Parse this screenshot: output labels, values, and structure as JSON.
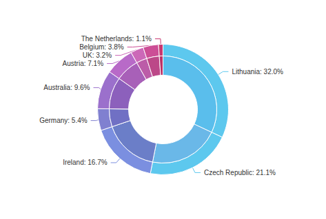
{
  "chart_data": {
    "type": "pie",
    "categories": [
      "Lithuania",
      "Czech Republic",
      "Ireland",
      "Germany",
      "Australia",
      "Austria",
      "UK",
      "Belgium",
      "The Netherlands"
    ],
    "series": [
      {
        "values": [
          32.0,
          21.1,
          16.7,
          5.4,
          9.6,
          7.1,
          3.2,
          3.8,
          1.1
        ],
        "colors": [
          "#5DC8EE",
          "#5DC8EE",
          "#7B8FE0",
          "#8080D0",
          "#9B70CC",
          "#B86AC8",
          "#CC68B8",
          "#CC4E96",
          "#C83870"
        ],
        "value_labels": [
          "Lithuania: 32.0%",
          "Czech Republic: 21.1%",
          "Ireland: 16.7%",
          "Germany: 5.4%",
          "Australia: 9.6%",
          "Austria: 7.1%",
          "UK: 3.2%",
          "Belgium: 3.8%",
          "The Netherlands: 1.1%"
        ]
      },
      {
        "values": [
          32.0,
          21.1,
          16.7,
          5.4,
          9.6,
          7.1,
          3.2,
          3.8,
          1.1
        ],
        "colors": [
          "#5ABEEC",
          "#6AB8E8",
          "#6B7EC8",
          "#7070C4",
          "#8C60BC",
          "#A860B8",
          "#BC5CA8",
          "#BC4888",
          "#BC3268"
        ]
      }
    ],
    "data_labels": true
  }
}
